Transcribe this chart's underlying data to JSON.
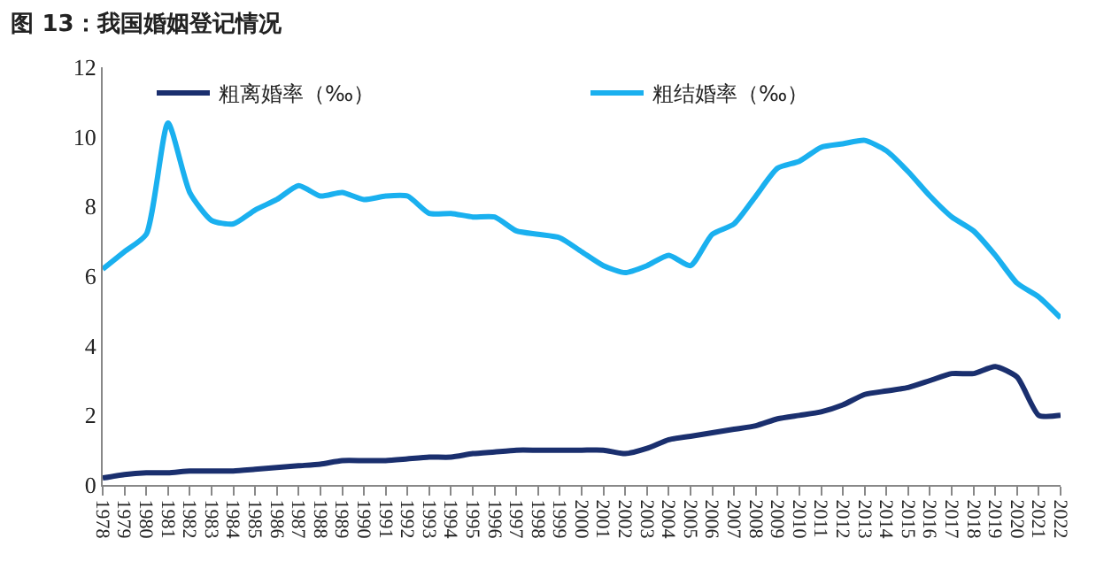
{
  "chart_data": {
    "type": "line",
    "title": "图 13：我国婚姻登记情况",
    "categories": [
      "1978",
      "1979",
      "1980",
      "1981",
      "1982",
      "1983",
      "1984",
      "1985",
      "1986",
      "1987",
      "1988",
      "1989",
      "1990",
      "1991",
      "1992",
      "1993",
      "1994",
      "1995",
      "1996",
      "1997",
      "1998",
      "1999",
      "2000",
      "2001",
      "2002",
      "2003",
      "2004",
      "2005",
      "2006",
      "2007",
      "2008",
      "2009",
      "2010",
      "2011",
      "2012",
      "2013",
      "2014",
      "2015",
      "2016",
      "2017",
      "2018",
      "2019",
      "2020",
      "2021",
      "2022"
    ],
    "series": [
      {
        "name": "粗离婚率（‰）",
        "color": "#1a2f6e",
        "values": [
          0.2,
          0.3,
          0.35,
          0.35,
          0.4,
          0.4,
          0.4,
          0.45,
          0.5,
          0.55,
          0.6,
          0.7,
          0.7,
          0.7,
          0.75,
          0.8,
          0.8,
          0.9,
          0.95,
          1.0,
          1.0,
          1.0,
          1.0,
          1.0,
          0.9,
          1.05,
          1.3,
          1.4,
          1.5,
          1.6,
          1.7,
          1.9,
          2.0,
          2.1,
          2.3,
          2.6,
          2.7,
          2.8,
          3.0,
          3.2,
          3.2,
          3.4,
          3.1,
          2.0,
          2.0
        ]
      },
      {
        "name": "粗结婚率（‰）",
        "color": "#1ab0ef",
        "values": [
          6.2,
          6.7,
          7.2,
          10.4,
          8.4,
          7.6,
          7.5,
          7.9,
          8.2,
          8.6,
          8.3,
          8.4,
          8.2,
          8.3,
          8.3,
          7.8,
          7.8,
          7.7,
          7.7,
          7.3,
          7.2,
          7.1,
          6.7,
          6.3,
          6.1,
          6.3,
          6.6,
          6.3,
          7.2,
          7.5,
          8.3,
          9.1,
          9.3,
          9.7,
          9.8,
          9.9,
          9.6,
          9.0,
          8.3,
          7.7,
          7.3,
          6.6,
          5.8,
          5.4,
          4.8
        ]
      }
    ],
    "ylim": [
      0,
      12
    ],
    "yticks": [
      0,
      2,
      4,
      6,
      8,
      10,
      12
    ],
    "legend": "top",
    "marker": "none",
    "line_style": "solid"
  }
}
